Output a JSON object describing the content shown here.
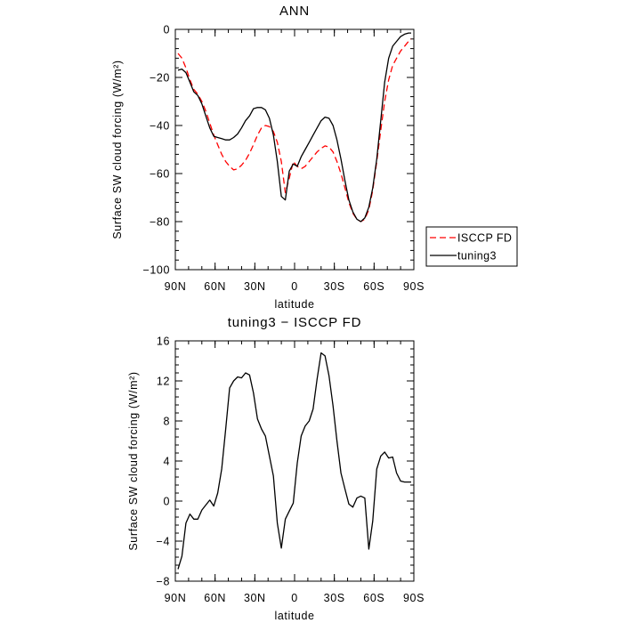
{
  "chart_data": [
    {
      "type": "line",
      "title": "ANN",
      "xlabel": "latitude",
      "ylabel": "Surface SW cloud forcing (W/m²)",
      "xlim": [
        90,
        -90
      ],
      "ylim": [
        -100,
        0
      ],
      "x_ticks": [
        90,
        60,
        30,
        0,
        -30,
        -60,
        -90
      ],
      "x_tick_labels": [
        "90N",
        "60N",
        "30N",
        "0",
        "30S",
        "60S",
        "90S"
      ],
      "y_ticks": [
        0,
        -20,
        -40,
        -60,
        -80,
        -100
      ],
      "y_tick_labels": [
        "0",
        "−20",
        "−40",
        "−60",
        "−80",
        "−100"
      ],
      "legend": "right",
      "series": [
        {
          "name": "ISCCP FD",
          "color": "#ff0000",
          "dash": "dashed",
          "x": [
            88,
            85,
            82,
            79,
            76,
            73,
            70,
            67,
            64,
            61,
            58,
            55,
            52,
            49,
            46,
            43,
            40,
            37,
            34,
            31,
            28,
            25,
            22,
            19,
            16,
            13,
            10,
            7,
            4,
            1,
            -2,
            -5,
            -8,
            -11,
            -14,
            -17,
            -20,
            -23,
            -26,
            -29,
            -32,
            -35,
            -38,
            -41,
            -44,
            -47,
            -50,
            -53,
            -56,
            -59,
            -62,
            -65,
            -68,
            -71,
            -74,
            -77,
            -80,
            -83,
            -86,
            -88
          ],
          "y": [
            -10,
            -12,
            -16,
            -21,
            -25,
            -27,
            -30,
            -34,
            -39,
            -44,
            -48,
            -52,
            -55,
            -57,
            -58.5,
            -58,
            -56.5,
            -54.5,
            -51.5,
            -48,
            -44,
            -41,
            -40,
            -40.5,
            -42.5,
            -47,
            -55,
            -68,
            -62,
            -55,
            -57,
            -58,
            -57,
            -55,
            -53,
            -51,
            -49.5,
            -48.5,
            -49,
            -51,
            -55,
            -60,
            -66,
            -72,
            -76.5,
            -79,
            -80,
            -79,
            -75,
            -67,
            -55,
            -42,
            -30,
            -21,
            -15,
            -12,
            -9,
            -7,
            -5,
            -4
          ]
        },
        {
          "name": "tuning3",
          "color": "#000000",
          "dash": "solid",
          "x": [
            88,
            85,
            82,
            79,
            76,
            73,
            70,
            67,
            64,
            61,
            58,
            55,
            52,
            49,
            46,
            43,
            40,
            37,
            34,
            31,
            28,
            25,
            22,
            19,
            16,
            13,
            10,
            7,
            4,
            1,
            -2,
            -5,
            -8,
            -11,
            -14,
            -17,
            -20,
            -23,
            -26,
            -29,
            -32,
            -35,
            -38,
            -41,
            -44,
            -47,
            -50,
            -53,
            -56,
            -59,
            -62,
            -65,
            -68,
            -71,
            -74,
            -77,
            -80,
            -83,
            -86,
            -88
          ],
          "y": [
            -17,
            -16.5,
            -18,
            -22,
            -26,
            -27.5,
            -31,
            -36,
            -41,
            -44.5,
            -45,
            -45.5,
            -46,
            -46,
            -45,
            -43.5,
            -41,
            -38,
            -36,
            -33,
            -32.5,
            -32.5,
            -33.5,
            -37,
            -44,
            -55,
            -69.5,
            -71,
            -59,
            -56,
            -57,
            -53,
            -50,
            -47,
            -44,
            -41,
            -38,
            -36.5,
            -37,
            -40,
            -46,
            -54,
            -63,
            -71,
            -76,
            -79,
            -80,
            -78.5,
            -74,
            -66,
            -54,
            -38,
            -22,
            -12,
            -7,
            -5,
            -3,
            -2,
            -1.5,
            -1.5
          ]
        }
      ]
    },
    {
      "type": "line",
      "title": "tuning3 − ISCCP FD",
      "xlabel": "latitude",
      "ylabel": "Surface SW cloud forcing (W/m²)",
      "xlim": [
        90,
        -90
      ],
      "ylim": [
        -8,
        16
      ],
      "x_ticks": [
        90,
        60,
        30,
        0,
        -30,
        -60,
        -90
      ],
      "x_tick_labels": [
        "90N",
        "60N",
        "30N",
        "0",
        "30S",
        "60S",
        "90S"
      ],
      "y_ticks": [
        16,
        12,
        8,
        4,
        0,
        -4,
        -8
      ],
      "y_tick_labels": [
        "16",
        "12",
        "8",
        "4",
        "0",
        "−4",
        "−8"
      ],
      "series": [
        {
          "color": "#000000",
          "dash": "solid",
          "x": [
            88,
            85,
            82,
            79,
            76,
            73,
            70,
            67,
            64,
            61,
            58,
            55,
            52,
            49,
            46,
            43,
            40,
            37,
            34,
            31,
            28,
            25,
            22,
            19,
            16,
            13,
            10,
            7,
            4,
            1,
            -2,
            -5,
            -8,
            -11,
            -14,
            -17,
            -20,
            -23,
            -26,
            -29,
            -32,
            -35,
            -38,
            -41,
            -44,
            -47,
            -50,
            -53,
            -56,
            -59,
            -62,
            -65,
            -68,
            -71,
            -74,
            -77,
            -80,
            -83,
            -86,
            -88
          ],
          "y": [
            -6.8,
            -5.5,
            -2.2,
            -1.3,
            -1.8,
            -1.8,
            -0.9,
            -0.4,
            0.1,
            -0.5,
            0.8,
            3.2,
            7.2,
            11.3,
            12.0,
            12.4,
            12.3,
            12.8,
            12.6,
            10.8,
            8.2,
            7.2,
            6.5,
            4.5,
            2.5,
            -2.2,
            -4.7,
            -1.8,
            -1.0,
            -0.2,
            3.8,
            6.5,
            7.5,
            8.0,
            9.2,
            12.2,
            14.8,
            14.5,
            12.5,
            9.5,
            6.0,
            2.8,
            1.2,
            -0.3,
            -0.6,
            0.3,
            0.5,
            0.3,
            -4.8,
            -2.0,
            3.2,
            4.5,
            4.9,
            4.3,
            4.4,
            2.8,
            2.0,
            1.9,
            1.9,
            1.9
          ]
        }
      ]
    }
  ]
}
